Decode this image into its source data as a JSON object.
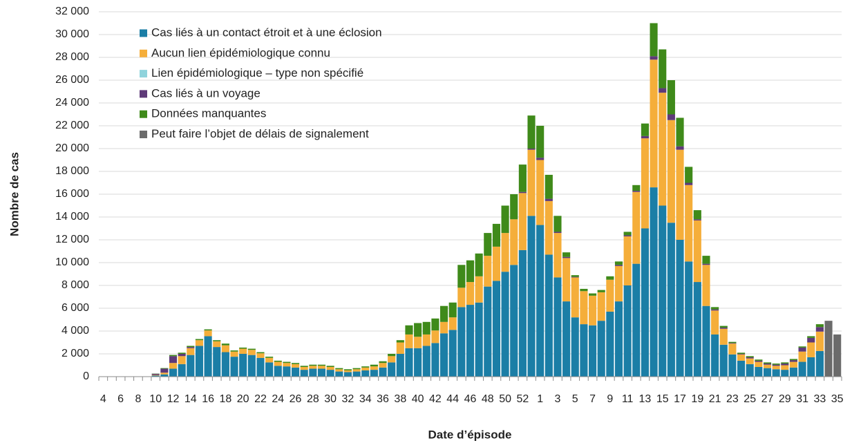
{
  "chart_data": {
    "type": "stacked_bar",
    "x_label": "Date d’épisode",
    "y_label": "Nombre de cas",
    "categories": [
      "4",
      null,
      "6",
      null,
      "8",
      null,
      "10",
      null,
      "12",
      null,
      "14",
      null,
      "16",
      null,
      "18",
      null,
      "20",
      null,
      "22",
      null,
      "24",
      null,
      "26",
      null,
      "28",
      null,
      "30",
      null,
      "32",
      null,
      "34",
      null,
      "36",
      null,
      "38",
      null,
      "40",
      null,
      "42",
      null,
      "44",
      null,
      "46",
      null,
      "48",
      null,
      "50",
      null,
      "52",
      null,
      "1",
      null,
      "3",
      null,
      "5",
      null,
      "7",
      null,
      "9",
      null,
      "11",
      null,
      "13",
      null,
      "15",
      null,
      "17",
      null,
      "19",
      null,
      "21",
      null,
      "23",
      null,
      "25",
      null,
      "27",
      null,
      "29",
      null,
      "31",
      null,
      "33",
      null,
      "35"
    ],
    "ylim": [
      0,
      32000
    ],
    "yticks": [
      0,
      {
        "value": 2000,
        "label": "2 000"
      },
      {
        "value": 4000,
        "label": "4 000"
      },
      {
        "value": 6000,
        "label": "6 000"
      },
      {
        "value": 8000,
        "label": "8 000"
      },
      {
        "value": 10000,
        "label": "10 000"
      },
      {
        "value": 12000,
        "label": "12 000"
      },
      {
        "value": 14000,
        "label": "14 000"
      },
      {
        "value": 16000,
        "label": "16 000"
      },
      {
        "value": 18000,
        "label": "18 000"
      },
      {
        "value": 20000,
        "label": "20 000"
      },
      {
        "value": 22000,
        "label": "22 000"
      },
      {
        "value": 24000,
        "label": "24 000"
      },
      {
        "value": 26000,
        "label": "26 000"
      },
      {
        "value": 28000,
        "label": "28 000"
      },
      {
        "value": 30000,
        "label": "30 000"
      },
      {
        "value": 32000,
        "label": "32 000"
      }
    ],
    "grid": true,
    "legend": "top-left",
    "series": [
      {
        "name": "Cas liés à un contact étroit et à une éclosion",
        "color": "#1b7ea6",
        "values": [
          0,
          0,
          0,
          0,
          0,
          10,
          100,
          200,
          700,
          1100,
          1900,
          2700,
          3550,
          2600,
          2150,
          1750,
          2000,
          1900,
          1650,
          1250,
          950,
          900,
          800,
          600,
          700,
          700,
          600,
          450,
          400,
          450,
          550,
          600,
          800,
          1250,
          2000,
          2500,
          2500,
          2700,
          2950,
          3800,
          4100,
          6100,
          6300,
          6500,
          7900,
          8400,
          9200,
          9800,
          11100,
          14100,
          13300,
          10700,
          8700,
          6600,
          5200,
          4600,
          4500,
          4900,
          5700,
          6600,
          8000,
          9900,
          13000,
          16600,
          15000,
          13500,
          12000,
          10100,
          8300,
          6200,
          3700,
          2800,
          1950,
          1400,
          1100,
          850,
          750,
          650,
          600,
          800,
          1300,
          1700,
          2250,
          null,
          null
        ]
      },
      {
        "name": "Aucun lien épidémiologique connu",
        "color": "#f5ae3a",
        "values": [
          0,
          0,
          0,
          5,
          5,
          5,
          50,
          150,
          500,
          700,
          600,
          500,
          500,
          500,
          600,
          450,
          450,
          450,
          400,
          400,
          350,
          300,
          300,
          250,
          250,
          250,
          250,
          200,
          150,
          200,
          250,
          300,
          400,
          550,
          1000,
          1200,
          1000,
          1000,
          1100,
          1000,
          1100,
          1700,
          2000,
          2300,
          2700,
          3000,
          3400,
          4000,
          5000,
          5800,
          5700,
          4700,
          3900,
          3800,
          3500,
          2900,
          2600,
          2500,
          2800,
          3100,
          4300,
          6300,
          7900,
          11200,
          9900,
          9000,
          7900,
          6700,
          5400,
          3600,
          2100,
          1400,
          950,
          550,
          500,
          450,
          300,
          300,
          400,
          500,
          900,
          1300,
          1700,
          null,
          null
        ]
      },
      {
        "name": "Lien épidémiologique – type non spécifié",
        "color": "#8fd3dc",
        "values": [
          0,
          0,
          0,
          0,
          0,
          0,
          0,
          0,
          0,
          0,
          0,
          0,
          0,
          0,
          0,
          0,
          0,
          0,
          0,
          0,
          0,
          0,
          0,
          0,
          0,
          0,
          0,
          0,
          0,
          0,
          0,
          0,
          0,
          0,
          0,
          0,
          0,
          0,
          0,
          0,
          0,
          0,
          0,
          0,
          0,
          0,
          0,
          0,
          0,
          0,
          0,
          0,
          0,
          0,
          0,
          0,
          0,
          0,
          0,
          0,
          0,
          0,
          0,
          0,
          0,
          0,
          0,
          0,
          0,
          0,
          0,
          0,
          0,
          0,
          0,
          0,
          0,
          0,
          0,
          0,
          0,
          0,
          0,
          null,
          null
        ]
      },
      {
        "name": "Cas liés à un voyage",
        "color": "#5e3a78",
        "values": [
          0,
          0,
          0,
          0,
          5,
          10,
          100,
          350,
          600,
          200,
          100,
          0,
          0,
          0,
          0,
          0,
          0,
          0,
          0,
          0,
          0,
          0,
          0,
          0,
          0,
          0,
          0,
          0,
          0,
          0,
          0,
          0,
          0,
          0,
          0,
          0,
          0,
          0,
          0,
          0,
          0,
          0,
          0,
          0,
          0,
          0,
          0,
          0,
          100,
          100,
          200,
          200,
          100,
          100,
          50,
          0,
          0,
          0,
          0,
          100,
          100,
          100,
          200,
          300,
          400,
          500,
          300,
          200,
          100,
          100,
          100,
          100,
          50,
          50,
          100,
          100,
          100,
          100,
          150,
          150,
          350,
          400,
          400,
          null,
          null
        ]
      },
      {
        "name": "Données manquantes",
        "color": "#3f8a1a",
        "values": [
          0,
          0,
          0,
          0,
          0,
          0,
          20,
          50,
          100,
          100,
          100,
          100,
          100,
          100,
          150,
          100,
          100,
          100,
          100,
          100,
          100,
          100,
          100,
          100,
          100,
          100,
          100,
          100,
          100,
          100,
          100,
          150,
          150,
          200,
          200,
          800,
          1200,
          1100,
          1050,
          1400,
          1300,
          2000,
          1900,
          2000,
          2000,
          2000,
          2400,
          2200,
          2400,
          2900,
          2800,
          2100,
          1400,
          400,
          150,
          200,
          200,
          200,
          300,
          300,
          300,
          500,
          1100,
          2900,
          3400,
          3000,
          2500,
          1400,
          800,
          700,
          200,
          150,
          100,
          100,
          100,
          100,
          100,
          100,
          100,
          100,
          100,
          150,
          250,
          null,
          null
        ]
      },
      {
        "name": "Peut faire l’objet de délais de signalement",
        "color": "#6b6b6b",
        "values": [
          null,
          null,
          null,
          null,
          null,
          null,
          null,
          null,
          null,
          null,
          null,
          null,
          null,
          null,
          null,
          null,
          null,
          null,
          null,
          null,
          null,
          null,
          null,
          null,
          null,
          null,
          null,
          null,
          null,
          null,
          null,
          null,
          null,
          null,
          null,
          null,
          null,
          null,
          null,
          null,
          null,
          null,
          null,
          null,
          null,
          null,
          null,
          null,
          null,
          null,
          null,
          null,
          null,
          null,
          null,
          null,
          null,
          null,
          null,
          null,
          null,
          null,
          null,
          null,
          null,
          null,
          null,
          null,
          null,
          null,
          null,
          null,
          null,
          null,
          null,
          null,
          null,
          null,
          null,
          null,
          null,
          null,
          null,
          4900,
          3700
        ]
      }
    ]
  }
}
